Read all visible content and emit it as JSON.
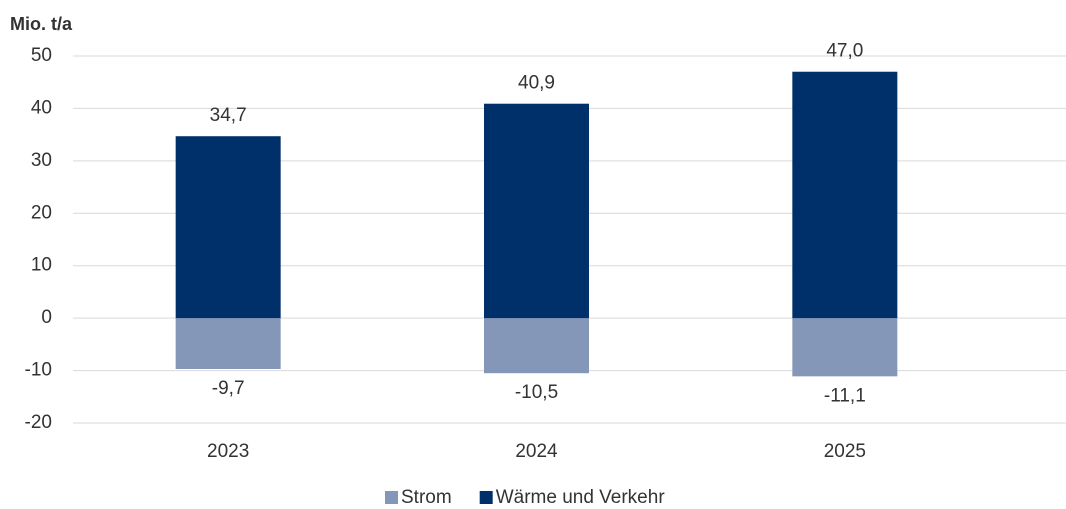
{
  "chart_data": {
    "type": "bar",
    "stacked": true,
    "ylabel": "Mio. t/a",
    "categories": [
      "2023",
      "2024",
      "2025"
    ],
    "series": [
      {
        "name": "Strom",
        "color": "#8497b8",
        "values": [
          -9.7,
          -10.5,
          -11.1
        ],
        "value_labels": [
          "-9,7",
          "-10,5",
          "-11,1"
        ]
      },
      {
        "name": "Wärme und Verkehr",
        "color": "#003069",
        "values": [
          34.7,
          40.9,
          47.0
        ],
        "value_labels": [
          "34,7",
          "40,9",
          "47,0"
        ]
      }
    ],
    "ylim": [
      -20,
      50
    ],
    "yticks": [
      -20,
      -10,
      0,
      10,
      20,
      30,
      40,
      50
    ],
    "grid": true,
    "legend": "bottom"
  }
}
